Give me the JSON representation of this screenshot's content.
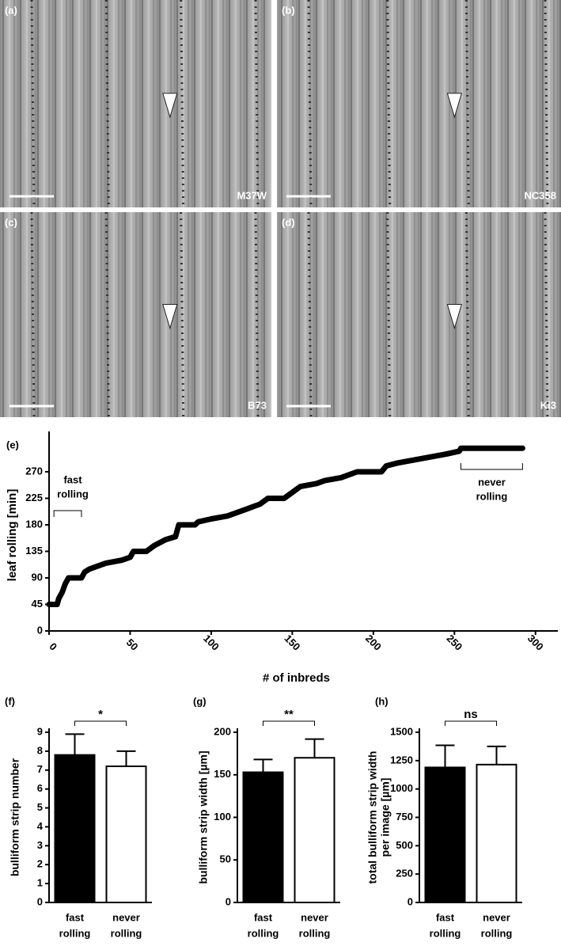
{
  "panels": [
    {
      "label": "(a)",
      "sample": "M37W"
    },
    {
      "label": "(b)",
      "sample": "NC358"
    },
    {
      "label": "(c)",
      "sample": "B73"
    },
    {
      "label": "(d)",
      "sample": "Ki3"
    }
  ],
  "chart_data": [
    {
      "type": "line",
      "panel_label": "(e)",
      "ylabel": "leaf rolling [min]",
      "xlabel": "# of inbreds",
      "color": "#000000",
      "x": [
        0,
        5,
        6,
        8,
        10,
        12,
        20,
        22,
        25,
        30,
        35,
        45,
        50,
        52,
        60,
        65,
        72,
        78,
        80,
        90,
        92,
        100,
        110,
        120,
        130,
        135,
        145,
        150,
        155,
        165,
        170,
        180,
        190,
        205,
        208,
        215,
        225,
        235,
        245,
        253,
        254,
        292
      ],
      "values": [
        45,
        45,
        55,
        65,
        80,
        90,
        90,
        100,
        105,
        110,
        115,
        120,
        125,
        135,
        135,
        145,
        155,
        160,
        180,
        180,
        185,
        190,
        195,
        205,
        215,
        225,
        225,
        235,
        245,
        250,
        255,
        260,
        270,
        270,
        280,
        285,
        290,
        295,
        300,
        305,
        310,
        310
      ],
      "xlim": [
        0,
        305
      ],
      "xticks": [
        0,
        50,
        100,
        150,
        200,
        250,
        300
      ],
      "ylim": [
        0,
        325
      ],
      "yticks": [
        0,
        45,
        90,
        135,
        180,
        225,
        270
      ],
      "annotations": [
        [
          "fast",
          "rolling"
        ],
        [
          "never",
          "rolling"
        ]
      ]
    },
    {
      "type": "bar",
      "panel_label": "(f)",
      "ylabel": [
        "bulliform strip number"
      ],
      "categories": [
        [
          "fast",
          "rolling"
        ],
        [
          "never",
          "rolling"
        ]
      ],
      "values": [
        7.8,
        7.2
      ],
      "errors": [
        1.1,
        0.8
      ],
      "colors": [
        "#000000",
        "#ffffff"
      ],
      "ylim": [
        0,
        9
      ],
      "yticks": [
        0,
        1,
        2,
        3,
        4,
        5,
        6,
        7,
        8,
        9
      ],
      "significance": "*"
    },
    {
      "type": "bar",
      "panel_label": "(g)",
      "ylabel": [
        "bulliform strip width [µm]"
      ],
      "categories": [
        [
          "fast",
          "rolling"
        ],
        [
          "never",
          "rolling"
        ]
      ],
      "values": [
        153,
        170
      ],
      "errors": [
        15,
        22
      ],
      "colors": [
        "#000000",
        "#ffffff"
      ],
      "ylim": [
        0,
        200
      ],
      "yticks": [
        0,
        50,
        100,
        150,
        200
      ],
      "significance": "**"
    },
    {
      "type": "bar",
      "panel_label": "(h)",
      "ylabel": [
        "total bulliform strip width",
        "per image [µm]"
      ],
      "categories": [
        [
          "fast",
          "rolling"
        ],
        [
          "never",
          "rolling"
        ]
      ],
      "values": [
        1190,
        1215
      ],
      "errors": [
        195,
        160
      ],
      "colors": [
        "#000000",
        "#ffffff"
      ],
      "ylim": [
        0,
        1500
      ],
      "yticks": [
        0,
        250,
        500,
        750,
        1000,
        1250,
        1500
      ],
      "significance": "ns"
    }
  ]
}
